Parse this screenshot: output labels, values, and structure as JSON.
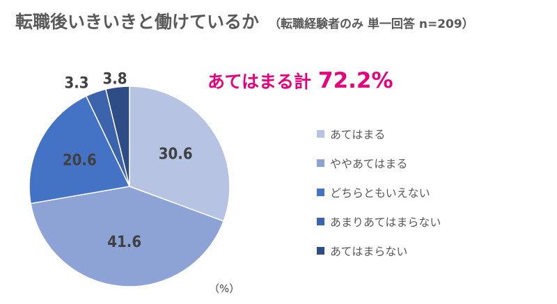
{
  "title": {
    "main": "転職後いきいきと働けているか",
    "sub": "（転職経験者のみ 単一回答 n=209）"
  },
  "summary": {
    "label": "あてはまる計",
    "value": "72.2%"
  },
  "unit_label": "（%）",
  "chart_data": {
    "type": "pie",
    "title": "転職後いきいきと働けているか",
    "subtitle": "（転職経験者のみ 単一回答 n=209）",
    "unit": "%",
    "start_angle_deg": 0,
    "direction": "clockwise",
    "legend_position": "right",
    "slices": [
      {
        "label": "あてはまる",
        "value": 30.6,
        "display": "30.6",
        "color": "#b7c3e2",
        "label_position": "inside",
        "text_color": "#404040"
      },
      {
        "label": "ややあてはまる",
        "value": 41.6,
        "display": "41.6",
        "color": "#8ea3d5",
        "label_position": "inside",
        "text_color": "#404040"
      },
      {
        "label": "どちらともいえない",
        "value": 20.6,
        "display": "20.6",
        "color": "#4472c4",
        "label_position": "inside",
        "text_color": "#404040"
      },
      {
        "label": "あまりあてはまらない",
        "value": 3.3,
        "display": "3.3",
        "color": "#3b64ad",
        "label_position": "outside",
        "text_color": "#404040"
      },
      {
        "label": "あてはまらない",
        "value": 3.8,
        "display": "3.8",
        "color": "#2e4d87",
        "label_position": "outside",
        "text_color": "#404040"
      }
    ]
  }
}
